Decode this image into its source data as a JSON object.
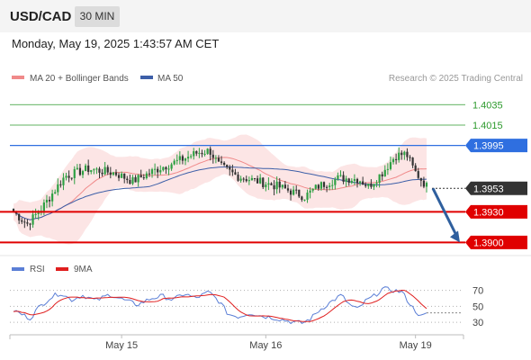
{
  "header": {
    "symbol": "USD/CAD",
    "timeframe": "30 MIN",
    "datetime": "Monday, May 19, 2025 1:43:57 AM CET"
  },
  "legend": {
    "bands": {
      "label": "MA 20 + Bollinger Bands",
      "color": "#f08a8a"
    },
    "ma50": {
      "label": "MA 50",
      "color": "#3d5fa8"
    },
    "credit": "Research © 2025 Trading Central"
  },
  "rsi_legend": {
    "rsi": {
      "label": "RSI",
      "color": "#5b7fd6"
    },
    "ma9": {
      "label": "9MA",
      "color": "#e01f1f"
    }
  },
  "colors": {
    "up": "#2ea043",
    "down": "#333333",
    "target_arrow": "#2f5f9e"
  },
  "chart_data": [
    {
      "type": "candlestick",
      "ylim": [
        1.3888,
        1.4052
      ],
      "levels": [
        {
          "value": 1.4035,
          "label": "1.4035",
          "style": "resistance-green",
          "color": "#2d9a2d"
        },
        {
          "value": 1.4015,
          "label": "1.4015",
          "style": "resistance-green",
          "color": "#2d9a2d"
        },
        {
          "value": 1.3995,
          "label": "1.3995",
          "style": "pivot-blue",
          "color": "#2f6fe0"
        },
        {
          "value": 1.3953,
          "label": "1.3953",
          "style": "last-price",
          "color": "#333333"
        },
        {
          "value": 1.393,
          "label": "1.3930",
          "style": "support-red",
          "color": "#e00000"
        },
        {
          "value": 1.39,
          "label": "1.3900",
          "style": "support-red",
          "color": "#e00000"
        }
      ],
      "x_ticks": [
        "May 15",
        "May 16",
        "May 19"
      ],
      "close_path": [
        [
          0,
          1.393
        ],
        [
          10,
          1.3918
        ],
        [
          20,
          1.3932
        ],
        [
          38,
          1.3965
        ],
        [
          55,
          1.3972
        ],
        [
          75,
          1.3968
        ],
        [
          88,
          1.396
        ],
        [
          108,
          1.3973
        ],
        [
          122,
          1.398
        ],
        [
          136,
          1.3988
        ],
        [
          145,
          1.399
        ],
        [
          152,
          1.3975
        ],
        [
          165,
          1.3965
        ],
        [
          180,
          1.396
        ],
        [
          195,
          1.3955
        ],
        [
          205,
          1.395
        ],
        [
          215,
          1.3945
        ],
        [
          225,
          1.3955
        ],
        [
          240,
          1.3963
        ],
        [
          255,
          1.3962
        ],
        [
          262,
          1.3955
        ],
        [
          272,
          1.3968
        ],
        [
          282,
          1.3985
        ],
        [
          290,
          1.3987
        ],
        [
          296,
          1.397
        ],
        [
          305,
          1.3955
        ]
      ],
      "projection": {
        "from": 1.3953,
        "to": 1.39
      }
    },
    {
      "type": "line",
      "name": "RSI",
      "ylim": [
        20,
        82
      ],
      "y_ticks": [
        70,
        50,
        30
      ],
      "rsi_path": [
        [
          0,
          45
        ],
        [
          6,
          40
        ],
        [
          12,
          35
        ],
        [
          18,
          48
        ],
        [
          26,
          60
        ],
        [
          34,
          67
        ],
        [
          42,
          58
        ],
        [
          50,
          64
        ],
        [
          60,
          57
        ],
        [
          70,
          65
        ],
        [
          80,
          58
        ],
        [
          90,
          52
        ],
        [
          100,
          60
        ],
        [
          108,
          63
        ],
        [
          116,
          58
        ],
        [
          124,
          66
        ],
        [
          132,
          60
        ],
        [
          142,
          68
        ],
        [
          150,
          55
        ],
        [
          156,
          40
        ],
        [
          164,
          37
        ],
        [
          172,
          42
        ],
        [
          180,
          38
        ],
        [
          188,
          36
        ],
        [
          196,
          33
        ],
        [
          204,
          30
        ],
        [
          210,
          29
        ],
        [
          216,
          35
        ],
        [
          222,
          45
        ],
        [
          230,
          55
        ],
        [
          238,
          64
        ],
        [
          244,
          52
        ],
        [
          250,
          46
        ],
        [
          256,
          57
        ],
        [
          262,
          63
        ],
        [
          268,
          72
        ],
        [
          276,
          70
        ],
        [
          282,
          68
        ],
        [
          290,
          48
        ],
        [
          296,
          37
        ],
        [
          300,
          40
        ]
      ]
    }
  ]
}
